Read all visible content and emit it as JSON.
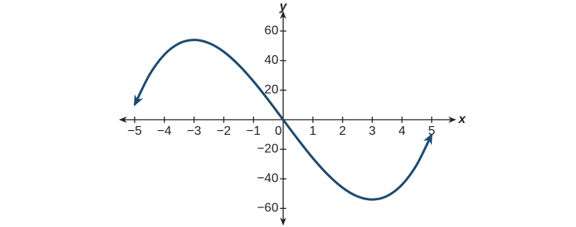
{
  "chart_data": {
    "type": "line",
    "x_label": "x",
    "y_label": "y",
    "x": [
      -5,
      -4.5,
      -4,
      -3.5,
      -3,
      -2.5,
      -2,
      -1.5,
      -1,
      -0.5,
      0,
      0.5,
      1,
      1.5,
      2,
      2.5,
      3,
      3.5,
      4,
      4.5,
      5
    ],
    "series": [
      {
        "color": "#1d4a70",
        "values": [
          10,
          30.375,
          44,
          51.625,
          54,
          51.875,
          46,
          37.125,
          26,
          13.375,
          0,
          -13.375,
          -26,
          -37.125,
          -46,
          -51.875,
          -54,
          -51.625,
          -44,
          -30.375,
          -10
        ]
      }
    ],
    "xlim": [
      -5.5,
      5.8
    ],
    "ylim": [
      -71,
      73
    ],
    "xticks": [
      {
        "value": -5,
        "label": "−5"
      },
      {
        "value": -4,
        "label": "−4"
      },
      {
        "value": -3,
        "label": "−3"
      },
      {
        "value": -2,
        "label": "−2"
      },
      {
        "value": -1,
        "label": "−1"
      },
      0,
      1,
      2,
      3,
      4,
      5
    ],
    "yticks": [
      {
        "value": -60,
        "label": "−60"
      },
      {
        "value": -40,
        "label": "−40"
      },
      {
        "value": -20,
        "label": "−20"
      },
      20,
      40,
      60
    ]
  }
}
